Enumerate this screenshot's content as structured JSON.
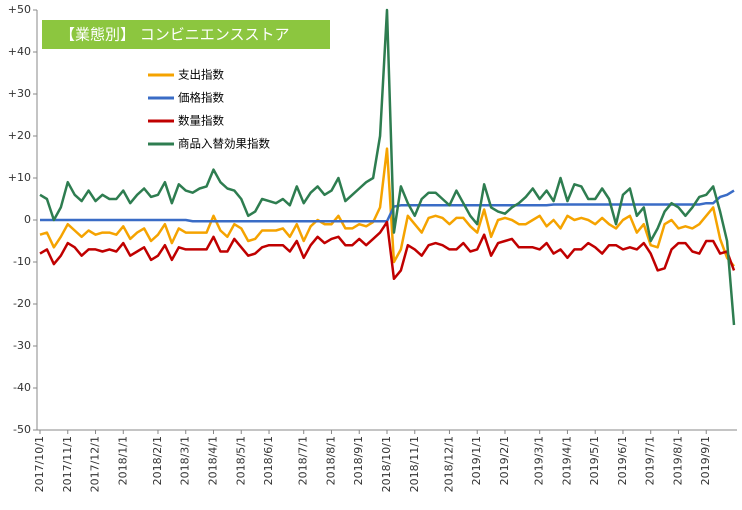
{
  "chart_data": {
    "type": "line",
    "title": "【業態別】 コンビニエンスストア",
    "categories": [
      "2017/10/1",
      null,
      null,
      null,
      "2017/11/1",
      null,
      null,
      null,
      "2017/12/1",
      null,
      null,
      null,
      "2018/1/1",
      null,
      null,
      null,
      null,
      "2018/2/1",
      null,
      null,
      null,
      "2018/3/1",
      null,
      null,
      null,
      "2018/4/1",
      null,
      null,
      null,
      "2018/5/1",
      null,
      null,
      null,
      "2018/6/1",
      null,
      null,
      null,
      null,
      "2018/7/1",
      null,
      null,
      null,
      "2018/8/1",
      null,
      null,
      null,
      "2018/9/1",
      null,
      null,
      null,
      "2018/10/1",
      null,
      null,
      null,
      "2018/11/1",
      null,
      null,
      null,
      null,
      "2018/12/1",
      null,
      null,
      null,
      "2019/1/1",
      null,
      null,
      null,
      "2019/2/1",
      null,
      null,
      null,
      null,
      "2019/3/1",
      null,
      null,
      null,
      "2019/4/1",
      null,
      null,
      null,
      "2019/5/1",
      null,
      null,
      null,
      "2019/6/1",
      null,
      null,
      null,
      "2019/7/1",
      null,
      null,
      null,
      "2019/8/1",
      null,
      null,
      null,
      "2019/9/1",
      null,
      null,
      null,
      null
    ],
    "series": [
      {
        "name": "支出指数",
        "color": "#f5a300",
        "values": [
          -3.5,
          -3,
          -6.5,
          -4,
          -1,
          -2.5,
          -4,
          -2.5,
          -3.5,
          -3,
          -3,
          -3.5,
          -1.5,
          -4.5,
          -3,
          -2,
          -5,
          -3.5,
          -1,
          -5.5,
          -2,
          -3,
          -3,
          -3,
          -3,
          1,
          -2.5,
          -4,
          -1,
          -2,
          -5,
          -4.5,
          -2.5,
          -2.5,
          -2.5,
          -2,
          -4,
          -1,
          -5,
          -1.5,
          0,
          -1,
          -1,
          1,
          -2,
          -2,
          -1,
          -1.5,
          -0.5,
          3,
          17,
          -10,
          -7,
          1,
          -1,
          -3,
          0.5,
          1,
          0.5,
          -1,
          0.5,
          0.5,
          -1.5,
          -3,
          2.5,
          -4,
          0,
          0.5,
          0,
          -1,
          -1,
          0,
          1,
          -1.5,
          0,
          -2,
          1,
          0,
          0.5,
          0,
          -1,
          0.5,
          -1,
          -2,
          0,
          1,
          -3,
          -1,
          -6,
          -6.5,
          -1,
          0,
          -2,
          -1.5,
          -2,
          -1,
          1,
          3,
          -4.5,
          -9,
          -11
        ]
      },
      {
        "name": "価格指数",
        "color": "#3a6cc6",
        "values": [
          0,
          0,
          0,
          0,
          0,
          0,
          0,
          0,
          0,
          0,
          0,
          0,
          0,
          0,
          0,
          0,
          0,
          0,
          0,
          0,
          0,
          0,
          -0.3,
          -0.3,
          -0.3,
          -0.3,
          -0.3,
          -0.3,
          -0.3,
          -0.3,
          -0.3,
          -0.3,
          -0.3,
          -0.3,
          -0.3,
          -0.3,
          -0.3,
          -0.3,
          -0.3,
          -0.3,
          -0.3,
          -0.3,
          -0.3,
          -0.3,
          -0.3,
          -0.3,
          -0.3,
          -0.3,
          -0.3,
          -0.3,
          -0.3,
          3.2,
          3.5,
          3.5,
          3.5,
          3.5,
          3.5,
          3.5,
          3.5,
          3.5,
          3.5,
          3.5,
          3.5,
          3.5,
          3.5,
          3.5,
          3.5,
          3.5,
          3.5,
          3.5,
          3.5,
          3.5,
          3.5,
          3.5,
          3.7,
          3.7,
          3.7,
          3.7,
          3.7,
          3.7,
          3.7,
          3.7,
          3.7,
          3.7,
          3.7,
          3.7,
          3.7,
          3.7,
          3.7,
          3.7,
          3.7,
          3.7,
          3.7,
          3.7,
          3.7,
          3.7,
          4,
          4,
          5.5,
          6,
          7
        ]
      },
      {
        "name": "数量指数",
        "color": "#c00000",
        "values": [
          -8,
          -7,
          -10.5,
          -8.5,
          -5.5,
          -6.5,
          -8.5,
          -7,
          -7,
          -7.5,
          -7,
          -7.5,
          -5.5,
          -8.5,
          -7.5,
          -6.5,
          -9.5,
          -8.5,
          -6,
          -9.5,
          -6.5,
          -7,
          -7,
          -7,
          -7,
          -4,
          -7.5,
          -7.5,
          -4.5,
          -6.5,
          -8.5,
          -8,
          -6.5,
          -6,
          -6,
          -6,
          -7.5,
          -5,
          -9,
          -6,
          -4,
          -5.5,
          -4.5,
          -4,
          -6,
          -6,
          -4.5,
          -6,
          -4.5,
          -3,
          -0.5,
          -14,
          -12,
          -6,
          -7,
          -8.5,
          -6,
          -5.5,
          -6,
          -7,
          -7,
          -5.5,
          -7.5,
          -7,
          -3.5,
          -8.5,
          -5.5,
          -5,
          -4.5,
          -6.5,
          -6.5,
          -6.5,
          -7,
          -5.5,
          -8,
          -7,
          -9,
          -7,
          -7,
          -5.5,
          -6.5,
          -8,
          -6,
          -6,
          -7,
          -6.5,
          -7,
          -5.5,
          -8,
          -12,
          -11.5,
          -7,
          -5.5,
          -5.5,
          -7.5,
          -8,
          -5,
          -5,
          -8,
          -7.5,
          -12
        ]
      },
      {
        "name": "商品入替効果指数",
        "color": "#2e7d50",
        "values": [
          6,
          5,
          0,
          3,
          9,
          6,
          4.5,
          7,
          4.5,
          6,
          5,
          5,
          7,
          4,
          6,
          7.5,
          5.5,
          6,
          9,
          4,
          8.5,
          7,
          6.5,
          7.5,
          8,
          12,
          9,
          7.5,
          7,
          5,
          1,
          2,
          5,
          4.5,
          4,
          5,
          3.5,
          8,
          4,
          6.5,
          8,
          6,
          7,
          10,
          4.5,
          6,
          7.5,
          9,
          10,
          20,
          50,
          -3,
          8,
          4,
          1,
          5,
          6.5,
          6.5,
          5,
          3.5,
          7,
          4,
          1,
          -1,
          8.5,
          3,
          2,
          1.5,
          3,
          4,
          5.5,
          7.5,
          5,
          7,
          4.5,
          10,
          4.5,
          8.5,
          8,
          5,
          5,
          7.5,
          5,
          -1,
          6,
          7.5,
          1,
          3,
          -5,
          -2,
          2,
          4,
          3,
          1,
          3,
          5.5,
          6,
          8,
          2,
          -5,
          -25
        ]
      }
    ],
    "ylim": [
      -50,
      50
    ],
    "yticks": [
      {
        "value": 50,
        "label": "+50"
      },
      {
        "value": 40,
        "label": "+40"
      },
      {
        "value": 30,
        "label": "+30"
      },
      {
        "value": 20,
        "label": "+20"
      },
      {
        "value": 10,
        "label": "+10"
      },
      0,
      -10,
      -20,
      -30,
      -40,
      -50
    ]
  }
}
